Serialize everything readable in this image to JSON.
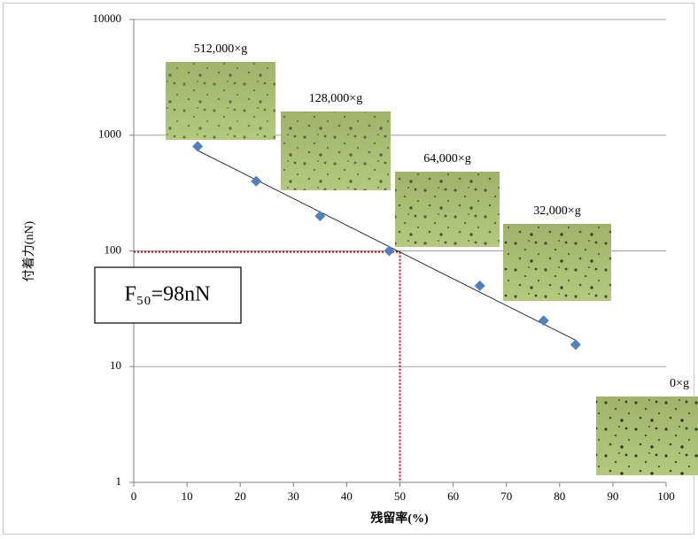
{
  "chart_data": {
    "type": "scatter",
    "x": [
      12,
      23,
      35,
      48,
      65,
      77,
      83
    ],
    "values": [
      800,
      400,
      200,
      100,
      50,
      25,
      15.5
    ],
    "color": "#4f81bd",
    "xlim": [
      0,
      100
    ],
    "xticks": [
      0,
      10,
      20,
      30,
      40,
      50,
      60,
      70,
      80,
      90,
      100
    ],
    "ylim": [
      1,
      10000
    ],
    "yticks": [
      1,
      10,
      100,
      1000,
      10000
    ],
    "y_scale": "log",
    "grid": true,
    "trendline": true,
    "x_label": "残留率(%)",
    "y_label": "付着力(nN)",
    "reference": {
      "x": 50,
      "y": 98,
      "color": "#e00000"
    },
    "annotation": "F₅₀=98nN",
    "insets": [
      {
        "label": "512,000×g"
      },
      {
        "label": "128,000×g"
      },
      {
        "label": "64,000×g"
      },
      {
        "label": "32,000×g"
      },
      {
        "label": "0×g"
      }
    ]
  }
}
